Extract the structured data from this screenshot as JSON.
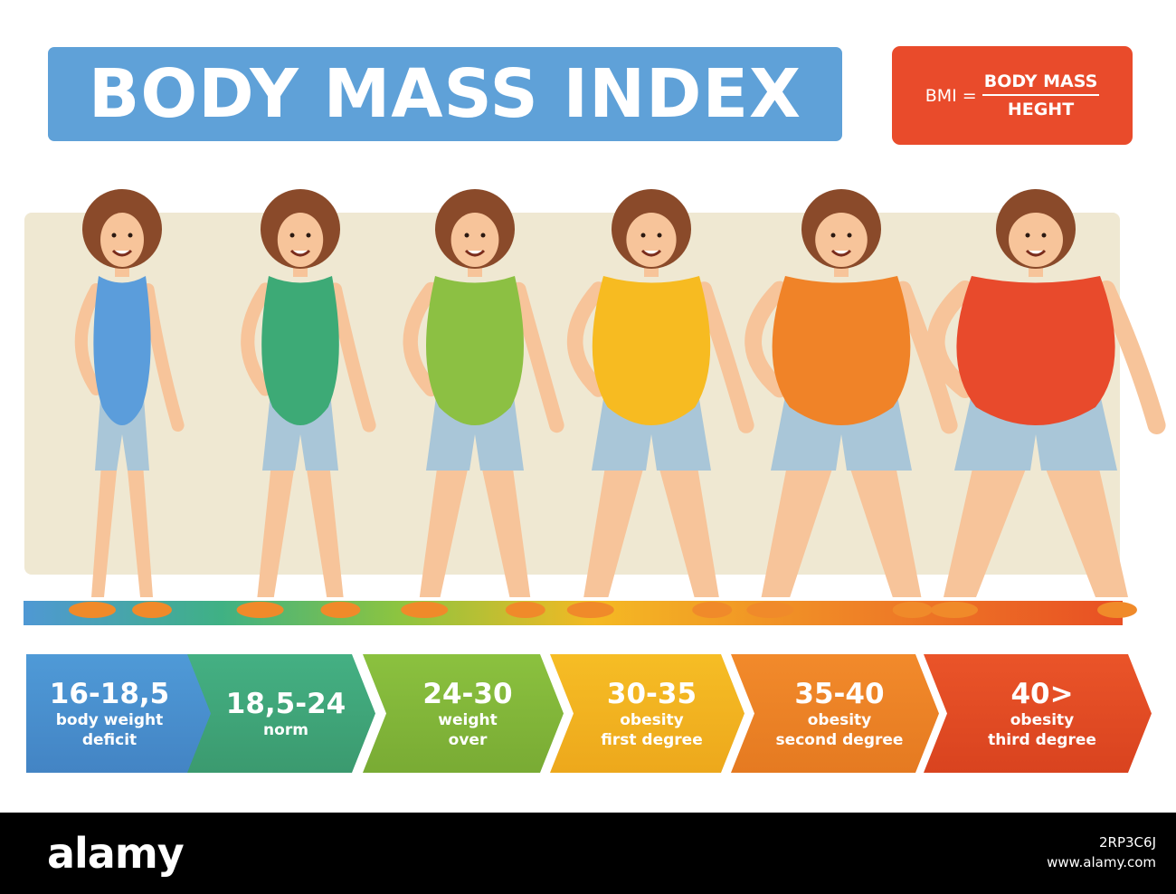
{
  "header": {
    "title": "BODY MASS INDEX"
  },
  "formula": {
    "lhs": "BMI =",
    "numerator": "BODY MASS",
    "denominator": "HEGHT"
  },
  "categories": [
    {
      "range": "16-18,5",
      "line1": "body weight",
      "line2": "deficit",
      "color": "#4f9ad7"
    },
    {
      "range": "18,5-24",
      "line1": "norm",
      "line2": "",
      "color": "#44b083"
    },
    {
      "range": "24-30",
      "line1": "weight",
      "line2": "over",
      "color": "#8bc13f"
    },
    {
      "range": "30-35",
      "line1": "obesity",
      "line2": "first degree",
      "color": "#f6bd25"
    },
    {
      "range": "35-40",
      "line1": "obesity",
      "line2": "second degree",
      "color": "#f28a2b"
    },
    {
      "range": "40>",
      "line1": "obesity",
      "line2": "third degree",
      "color": "#ea5429"
    }
  ],
  "figures": [
    {
      "suit_color": "#5b9ddb",
      "body_scale": 0.0
    },
    {
      "suit_color": "#3daa76",
      "body_scale": 0.2
    },
    {
      "suit_color": "#8cc043",
      "body_scale": 0.4
    },
    {
      "suit_color": "#f7bb21",
      "body_scale": 0.6
    },
    {
      "suit_color": "#f08328",
      "body_scale": 0.8
    },
    {
      "suit_color": "#e84a2c",
      "body_scale": 1.0
    }
  ],
  "footer": {
    "logo": "alamy",
    "image_id": "2RP3C6J",
    "site": "www.alamy.com"
  }
}
